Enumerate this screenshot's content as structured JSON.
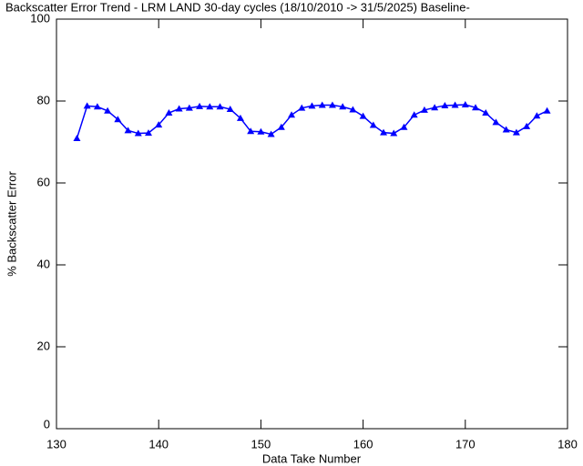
{
  "chart_data": {
    "type": "line",
    "title": "Backscatter Error Trend - LRM LAND 30-day cycles (18/10/2010 -> 31/5/2025) Baseline-",
    "x_label": "Data Take Number",
    "y_label": "% Backscatter Error",
    "x": [
      132,
      133,
      134,
      135,
      136,
      137,
      138,
      139,
      140,
      141,
      142,
      143,
      144,
      145,
      146,
      147,
      148,
      149,
      150,
      151,
      152,
      153,
      154,
      155,
      156,
      157,
      158,
      159,
      160,
      161,
      162,
      163,
      164,
      165,
      166,
      167,
      168,
      169,
      170,
      171,
      172,
      173,
      174,
      175,
      176,
      177,
      178
    ],
    "series": [
      {
        "color": "#0000ff",
        "values": [
          70.9,
          78.8,
          78.6,
          77.6,
          75.5,
          72.8,
          72.1,
          72.2,
          74.2,
          77.1,
          78.1,
          78.3,
          78.7,
          78.6,
          78.6,
          78.0,
          75.8,
          72.6,
          72.5,
          71.9,
          73.6,
          76.6,
          78.3,
          78.8,
          79.0,
          79.0,
          78.6,
          77.9,
          76.3,
          74.1,
          72.3,
          72.1,
          73.6,
          76.6,
          77.8,
          78.4,
          78.9,
          79.0,
          79.1,
          78.4,
          77.1,
          74.8,
          73.0,
          72.3,
          73.8,
          76.4,
          77.6
        ]
      }
    ],
    "xlim": [
      130,
      180
    ],
    "xticks": [
      130,
      140,
      150,
      160,
      170,
      180
    ],
    "ylim": [
      0,
      100
    ],
    "yticks": [
      0,
      20,
      40,
      60,
      80,
      100
    ]
  }
}
